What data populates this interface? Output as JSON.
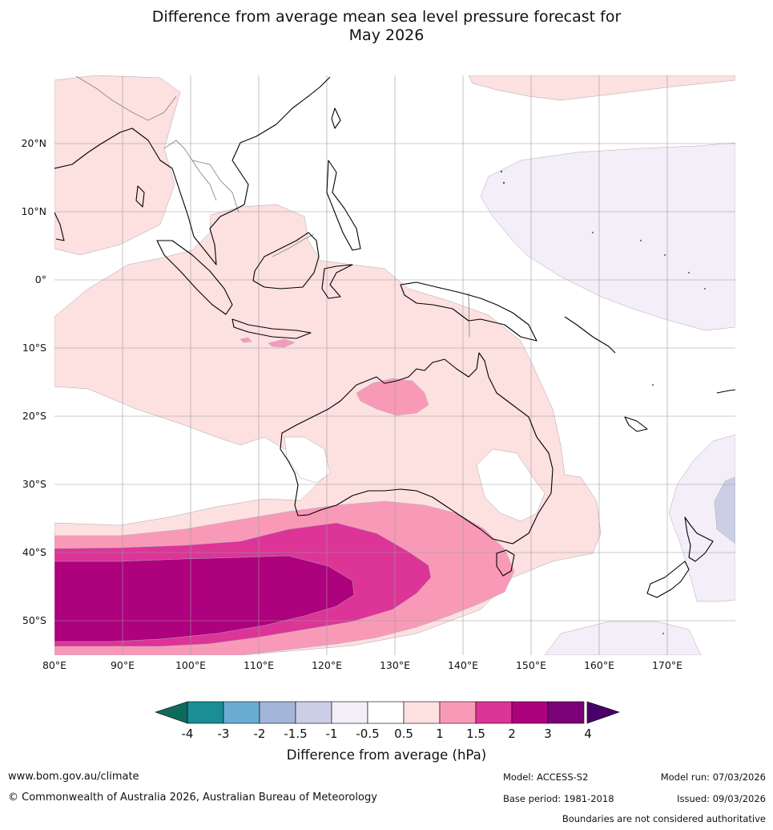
{
  "title": {
    "line1": "Difference from average mean sea level pressure forecast for",
    "line2": "May 2026"
  },
  "map": {
    "lat_labels": [
      "20°N",
      "10°N",
      "0°",
      "10°S",
      "20°S",
      "30°S",
      "40°S",
      "50°S"
    ],
    "lon_labels": [
      "80°E",
      "90°E",
      "100°E",
      "110°E",
      "120°E",
      "130°E",
      "140°E",
      "150°E",
      "160°E",
      "170°E"
    ],
    "extent": {
      "lon_min": 80,
      "lon_max": 180,
      "lat_min": -55,
      "lat_max": 30
    },
    "gridlines": true,
    "anomaly_regions": [
      {
        "region": "Indian Ocean / Australia / Maritime Continent",
        "class": "0.5 to 1"
      },
      {
        "region": "Bay of Bengal / Arabian Sea",
        "class": "0.5 to 1"
      },
      {
        "region": "Northern Australia (Kimberley)",
        "class": "1 to 1.5"
      },
      {
        "region": "Southern Ocean south of Australia",
        "class": "1 to 1.5"
      },
      {
        "region": "Southern Indian Ocean 40-45°S",
        "class": "1.5 to 2"
      },
      {
        "region": "Southern Indian Ocean 42-52°S",
        "class": "2 to 3"
      },
      {
        "region": "Western Pacific 10-20°N",
        "class": "-1 to -0.5"
      },
      {
        "region": "East of New Zealand",
        "class": "-1.5 to -1"
      }
    ]
  },
  "colorbar": {
    "ticks": [
      "-4",
      "-3",
      "-2",
      "-1.5",
      "-1",
      "-0.5",
      "0.5",
      "1",
      "1.5",
      "2",
      "3",
      "4"
    ],
    "colors": [
      "#1b8d95",
      "#6aabd2",
      "#a3b5d9",
      "#cbcee4",
      "#f3eef7",
      "#ffffff",
      "#fde0e0",
      "#f89ab7",
      "#dd3497",
      "#ae017e",
      "#7a0177"
    ],
    "low_extend_color": "#0e6b5c",
    "high_extend_color": "#49006a",
    "label": "Difference from average (hPa)"
  },
  "footer": {
    "url": "www.bom.gov.au/climate",
    "copyright": "© Commonwealth of Australia 2026, Australian Bureau of Meteorology",
    "model": "Model: ACCESS-S2",
    "base_period": "Base period: 1981-2018",
    "model_run": "Model run: 07/03/2026",
    "issued": "Issued: 09/03/2026",
    "disclaimer": "Boundaries are not considered authoritative"
  }
}
